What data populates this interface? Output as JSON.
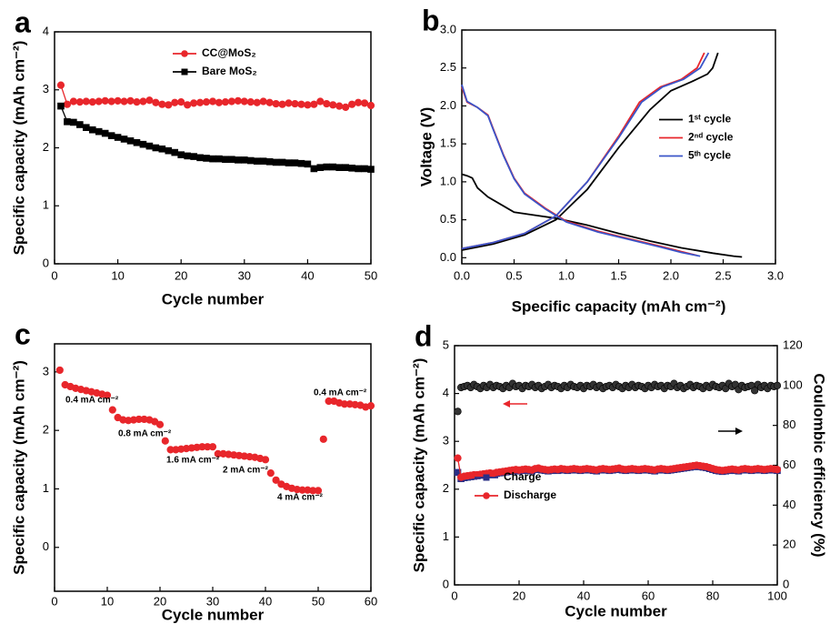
{
  "chart_data": [
    {
      "type": "line",
      "label": "a",
      "xlabel": "Cycle number",
      "ylabel": "Specific capacity (mAh cm⁻²)",
      "x": [
        1,
        2,
        3,
        4,
        5,
        6,
        7,
        8,
        9,
        10,
        11,
        12,
        13,
        14,
        15,
        16,
        17,
        18,
        19,
        20,
        21,
        22,
        23,
        24,
        25,
        26,
        27,
        28,
        29,
        30,
        31,
        32,
        33,
        34,
        35,
        36,
        37,
        38,
        39,
        40,
        41,
        42,
        43,
        44,
        45,
        46,
        47,
        48,
        49,
        50
      ],
      "series": [
        {
          "name": "CC@MoS₂",
          "color": "#e8262b",
          "marker": "circle",
          "line": true,
          "values": [
            3.08,
            2.75,
            2.8,
            2.79,
            2.8,
            2.79,
            2.8,
            2.81,
            2.8,
            2.81,
            2.8,
            2.81,
            2.79,
            2.8,
            2.82,
            2.78,
            2.75,
            2.74,
            2.78,
            2.79,
            2.74,
            2.77,
            2.78,
            2.79,
            2.8,
            2.78,
            2.79,
            2.8,
            2.81,
            2.8,
            2.79,
            2.78,
            2.8,
            2.78,
            2.76,
            2.75,
            2.77,
            2.76,
            2.75,
            2.74,
            2.75,
            2.8,
            2.76,
            2.74,
            2.72,
            2.7,
            2.75,
            2.78,
            2.77,
            2.73
          ]
        },
        {
          "name": "Bare MoS₂",
          "color": "#000000",
          "marker": "square",
          "line": true,
          "values": [
            2.72,
            2.45,
            2.44,
            2.4,
            2.35,
            2.31,
            2.28,
            2.25,
            2.21,
            2.18,
            2.15,
            2.12,
            2.09,
            2.06,
            2.03,
            2.0,
            1.98,
            1.95,
            1.92,
            1.88,
            1.86,
            1.85,
            1.83,
            1.82,
            1.81,
            1.81,
            1.8,
            1.8,
            1.79,
            1.79,
            1.78,
            1.77,
            1.77,
            1.76,
            1.75,
            1.75,
            1.74,
            1.74,
            1.73,
            1.72,
            1.64,
            1.66,
            1.67,
            1.67,
            1.66,
            1.66,
            1.65,
            1.64,
            1.64,
            1.63
          ]
        }
      ],
      "xlim": [
        0,
        50
      ],
      "xticks": [
        0,
        10,
        20,
        30,
        40,
        50
      ],
      "ylim": [
        0,
        4
      ],
      "yticks": [
        0,
        1,
        2,
        3,
        4
      ],
      "legend": "upper center"
    },
    {
      "type": "line",
      "label": "b",
      "xlabel": "Specific capacity (mAh cm⁻²)",
      "ylabel": "Voltage (V)",
      "series": [
        {
          "name": "1ˢᵗ cycle",
          "color": "#000000",
          "marker": "none",
          "line": true,
          "x": [
            0,
            0.05,
            0.1,
            0.15,
            0.25,
            0.4,
            0.5,
            0.7,
            0.9,
            1.2,
            1.5,
            1.8,
            2.1,
            2.4,
            2.6,
            2.68,
            null,
            0,
            0.3,
            0.6,
            0.9,
            1.2,
            1.5,
            1.8,
            2.0,
            2.2,
            2.35,
            2.4,
            2.45
          ],
          "values": [
            1.1,
            1.08,
            1.05,
            0.92,
            0.8,
            0.68,
            0.6,
            0.56,
            0.52,
            0.43,
            0.32,
            0.22,
            0.13,
            0.06,
            0.02,
            0.01,
            null,
            0.1,
            0.18,
            0.3,
            0.5,
            0.9,
            1.45,
            1.95,
            2.2,
            2.32,
            2.42,
            2.5,
            2.7
          ]
        },
        {
          "name": "2ⁿᵈ cycle",
          "color": "#e8262b",
          "marker": "none",
          "line": true,
          "x": [
            0,
            0.05,
            0.15,
            0.25,
            0.3,
            0.4,
            0.5,
            0.6,
            0.8,
            1.0,
            1.3,
            1.6,
            1.9,
            2.1,
            2.25,
            null,
            0,
            0.3,
            0.6,
            0.9,
            1.2,
            1.5,
            1.7,
            1.9,
            2.1,
            2.25,
            2.32
          ],
          "values": [
            2.25,
            2.05,
            1.98,
            1.88,
            1.7,
            1.35,
            1.05,
            0.85,
            0.65,
            0.48,
            0.35,
            0.25,
            0.15,
            0.08,
            0.03,
            null,
            0.12,
            0.2,
            0.32,
            0.55,
            1.0,
            1.6,
            2.05,
            2.25,
            2.35,
            2.5,
            2.7
          ]
        },
        {
          "name": "5ᵗʰ cycle",
          "color": "#3b55c9",
          "marker": "none",
          "line": true,
          "x": [
            0,
            0.05,
            0.15,
            0.25,
            0.3,
            0.4,
            0.5,
            0.6,
            0.8,
            1.0,
            1.3,
            1.6,
            1.9,
            2.1,
            2.28,
            null,
            0,
            0.3,
            0.6,
            0.9,
            1.2,
            1.5,
            1.72,
            1.92,
            2.12,
            2.28,
            2.36
          ],
          "values": [
            2.28,
            2.06,
            1.98,
            1.87,
            1.69,
            1.34,
            1.04,
            0.84,
            0.64,
            0.47,
            0.34,
            0.24,
            0.14,
            0.07,
            0.02,
            null,
            0.12,
            0.2,
            0.32,
            0.55,
            1.0,
            1.58,
            2.05,
            2.25,
            2.35,
            2.5,
            2.7
          ]
        }
      ],
      "xlim": [
        0,
        3
      ],
      "xticks": [
        {
          "value": 0,
          "label": "0.0"
        },
        {
          "value": 0.5,
          "label": "0.5"
        },
        {
          "value": 1,
          "label": "1.0"
        },
        {
          "value": 1.5,
          "label": "1.5"
        },
        {
          "value": 2,
          "label": "2.0"
        },
        {
          "value": 2.5,
          "label": "2.5"
        },
        {
          "value": 3,
          "label": "3.0"
        }
      ],
      "ylim": [
        -0.08,
        3
      ],
      "yticks": [
        {
          "value": 0,
          "label": "0.0"
        },
        {
          "value": 0.5,
          "label": "0.5"
        },
        {
          "value": 1,
          "label": "1.0"
        },
        {
          "value": 1.5,
          "label": "1.5"
        },
        {
          "value": 2,
          "label": "2.0"
        },
        {
          "value": 2.5,
          "label": "2.5"
        },
        {
          "value": 3,
          "label": "3.0"
        }
      ],
      "legend": "center right"
    },
    {
      "type": "scatter",
      "label": "c",
      "xlabel": "Cycle number",
      "ylabel": "Specific capacity (mAh cm⁻²)",
      "x": [
        1,
        2,
        3,
        4,
        5,
        6,
        7,
        8,
        9,
        10,
        11,
        12,
        13,
        14,
        15,
        16,
        17,
        18,
        19,
        20,
        21,
        22,
        23,
        24,
        25,
        26,
        27,
        28,
        29,
        30,
        31,
        32,
        33,
        34,
        35,
        36,
        37,
        38,
        39,
        40,
        41,
        42,
        43,
        44,
        45,
        46,
        47,
        48,
        49,
        50,
        51,
        52,
        53,
        54,
        55,
        56,
        57,
        58,
        59,
        60
      ],
      "series": [
        {
          "color": "#e8262b",
          "marker": "circle",
          "line": false,
          "values": [
            3.03,
            2.78,
            2.75,
            2.72,
            2.7,
            2.68,
            2.66,
            2.64,
            2.62,
            2.6,
            2.35,
            2.22,
            2.18,
            2.17,
            2.18,
            2.19,
            2.19,
            2.18,
            2.15,
            2.1,
            1.82,
            1.67,
            1.67,
            1.68,
            1.69,
            1.7,
            1.71,
            1.72,
            1.72,
            1.72,
            1.6,
            1.6,
            1.59,
            1.58,
            1.57,
            1.56,
            1.55,
            1.54,
            1.52,
            1.5,
            1.27,
            1.15,
            1.08,
            1.04,
            1.01,
            0.99,
            0.98,
            0.98,
            0.97,
            0.97,
            1.85,
            2.5,
            2.5,
            2.47,
            2.45,
            2.45,
            2.44,
            2.43,
            2.4,
            2.42
          ]
        }
      ],
      "annotations": [
        "0.4 mA cm⁻²",
        "0.8 mA cm⁻²",
        "1.6 mA cm⁻²",
        "2 mA cm⁻²",
        "4 mA cm⁻²",
        "0.4 mA cm⁻²"
      ],
      "xlim": [
        0,
        60
      ],
      "xticks": [
        0,
        10,
        20,
        30,
        40,
        50,
        60
      ],
      "ylim": [
        -0.75,
        3.48
      ],
      "yticks": [
        0,
        1,
        2,
        3
      ]
    },
    {
      "type": "scatter",
      "label": "d",
      "xlabel": "Cycle number",
      "ylabel": "Specific capacity (mAh cm⁻²)",
      "y2label": "Coulombic efficiency (%)",
      "x": [
        1,
        2,
        3,
        4,
        5,
        6,
        7,
        8,
        9,
        10,
        11,
        12,
        13,
        14,
        15,
        16,
        17,
        18,
        19,
        20,
        21,
        22,
        23,
        24,
        25,
        26,
        27,
        28,
        29,
        30,
        31,
        32,
        33,
        34,
        35,
        36,
        37,
        38,
        39,
        40,
        41,
        42,
        43,
        44,
        45,
        46,
        47,
        48,
        49,
        50,
        51,
        52,
        53,
        54,
        55,
        56,
        57,
        58,
        59,
        60,
        61,
        62,
        63,
        64,
        65,
        66,
        67,
        68,
        69,
        70,
        71,
        72,
        73,
        74,
        75,
        76,
        77,
        78,
        79,
        80,
        81,
        82,
        83,
        84,
        85,
        86,
        87,
        88,
        89,
        90,
        91,
        92,
        93,
        94,
        95,
        96,
        97,
        98,
        99,
        100
      ],
      "series": [
        {
          "name": "Charge",
          "color": "#2a2f86",
          "marker": "square",
          "line": false,
          "values": [
            2.35,
            2.22,
            2.24,
            2.25,
            2.26,
            2.27,
            2.28,
            2.29,
            2.3,
            2.31,
            2.32,
            2.31,
            2.33,
            2.34,
            2.35,
            2.36,
            2.37,
            2.38,
            2.39,
            2.38,
            2.39,
            2.4,
            2.39,
            2.38,
            2.41,
            2.42,
            2.4,
            2.39,
            2.38,
            2.39,
            2.4,
            2.39,
            2.41,
            2.4,
            2.39,
            2.4,
            2.41,
            2.4,
            2.39,
            2.4,
            2.41,
            2.4,
            2.39,
            2.38,
            2.4,
            2.41,
            2.4,
            2.39,
            2.4,
            2.41,
            2.42,
            2.4,
            2.39,
            2.4,
            2.41,
            2.4,
            2.39,
            2.4,
            2.41,
            2.4,
            2.39,
            2.38,
            2.4,
            2.41,
            2.4,
            2.39,
            2.4,
            2.41,
            2.42,
            2.43,
            2.44,
            2.45,
            2.46,
            2.47,
            2.48,
            2.47,
            2.46,
            2.45,
            2.43,
            2.41,
            2.39,
            2.38,
            2.37,
            2.38,
            2.39,
            2.4,
            2.39,
            2.38,
            2.4,
            2.41,
            2.4,
            2.39,
            2.4,
            2.41,
            2.4,
            2.39,
            2.4,
            2.41,
            2.4,
            2.39
          ]
        },
        {
          "name": "Discharge",
          "color": "#e8262b",
          "marker": "circle",
          "line": true,
          "values": [
            2.65,
            2.25,
            2.27,
            2.28,
            2.29,
            2.3,
            2.3,
            2.31,
            2.32,
            2.33,
            2.34,
            2.33,
            2.35,
            2.36,
            2.37,
            2.38,
            2.39,
            2.4,
            2.41,
            2.4,
            2.41,
            2.42,
            2.41,
            2.4,
            2.43,
            2.44,
            2.42,
            2.41,
            2.4,
            2.41,
            2.42,
            2.41,
            2.43,
            2.42,
            2.41,
            2.42,
            2.43,
            2.42,
            2.41,
            2.42,
            2.43,
            2.42,
            2.41,
            2.4,
            2.42,
            2.43,
            2.42,
            2.41,
            2.42,
            2.43,
            2.44,
            2.42,
            2.41,
            2.42,
            2.43,
            2.42,
            2.41,
            2.42,
            2.43,
            2.42,
            2.41,
            2.4,
            2.42,
            2.43,
            2.42,
            2.41,
            2.42,
            2.43,
            2.44,
            2.45,
            2.46,
            2.47,
            2.48,
            2.49,
            2.5,
            2.49,
            2.48,
            2.47,
            2.45,
            2.43,
            2.41,
            2.4,
            2.39,
            2.4,
            2.41,
            2.42,
            2.41,
            2.4,
            2.42,
            2.43,
            2.42,
            2.41,
            2.42,
            2.43,
            2.42,
            2.41,
            2.42,
            2.43,
            2.42,
            2.41
          ]
        },
        {
          "color": "#333333",
          "marker": "circle",
          "line": false,
          "axis": "y2",
          "values": [
            87,
            99,
            99.5,
            100,
            99,
            100.5,
            99.5,
            98.5,
            100,
            99,
            100.5,
            99,
            100,
            99.5,
            98.5,
            100,
            99,
            101,
            99.5,
            100,
            98.5,
            100,
            99.5,
            100.5,
            99,
            100,
            98.5,
            99.5,
            100.5,
            99,
            100,
            99.5,
            98.5,
            100,
            99,
            100.5,
            99.5,
            99,
            100,
            98.5,
            100,
            99.5,
            100.5,
            99,
            100,
            98.5,
            99.5,
            100,
            99,
            100.5,
            99.5,
            98.5,
            100,
            99,
            100.5,
            99,
            100,
            99.5,
            98.5,
            100,
            99,
            100.5,
            99.5,
            100,
            98.5,
            100,
            99.5,
            101,
            99,
            100,
            98.5,
            99.5,
            100.5,
            99,
            100,
            99.5,
            98.5,
            100,
            99,
            100.5,
            99.5,
            99,
            100,
            98.5,
            101,
            99.5,
            100.5,
            98,
            100,
            99,
            99.5,
            100,
            97.5,
            100.5,
            99,
            100,
            98.5,
            100,
            99.5,
            100
          ]
        }
      ],
      "xlim": [
        0,
        100
      ],
      "xticks": [
        0,
        20,
        40,
        60,
        80,
        100
      ],
      "ylim": [
        0,
        5
      ],
      "yticks": [
        0,
        1,
        2,
        3,
        4,
        5
      ],
      "y2lim": [
        0,
        120
      ],
      "y2ticks": [
        0,
        20,
        40,
        60,
        80,
        100,
        120
      ],
      "legend": "lower left"
    }
  ]
}
